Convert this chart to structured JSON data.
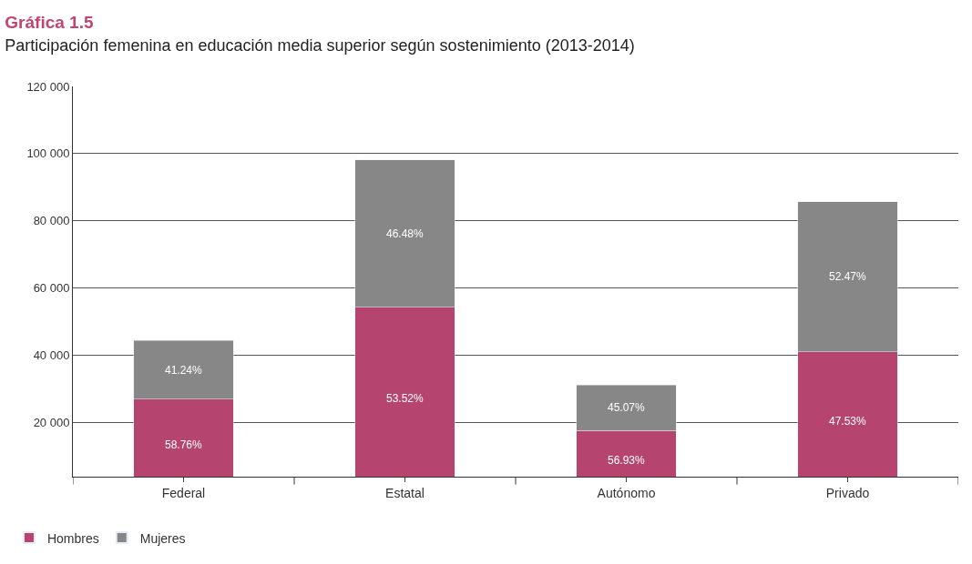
{
  "chart_data": {
    "type": "bar",
    "title": "Gráfica 1.5",
    "subtitle": "Participación femenina en educación media superior según sostenimiento (2013-2014)",
    "categories": [
      "Federal",
      "Estatal",
      "Autónomo",
      "Privado"
    ],
    "series": [
      {
        "name": "Hombres",
        "color": "#b5456e",
        "values": [
          27000,
          54300,
          17700,
          41000
        ]
      },
      {
        "name": "Mujeres",
        "color": "#878787",
        "values": [
          17400,
          43900,
          13500,
          44700
        ]
      }
    ],
    "annotations": [
      "58.76%",
      "41.24%",
      "53.52%",
      "46.48%",
      "56.93%",
      "45.07%",
      "47.53%",
      "52.47%"
    ],
    "stacked": true,
    "ylim": [
      3900,
      120000
    ],
    "yticks": [
      {
        "value": 20000,
        "label": "20 000"
      },
      {
        "value": 40000,
        "label": "40 000"
      },
      {
        "value": 60000,
        "label": "60 000"
      },
      {
        "value": 80000,
        "label": "80 000"
      },
      {
        "value": 100000,
        "label": "100 000"
      },
      {
        "value": 120000,
        "label": "120 000"
      }
    ],
    "grid": "y",
    "legend": "bottom left"
  }
}
